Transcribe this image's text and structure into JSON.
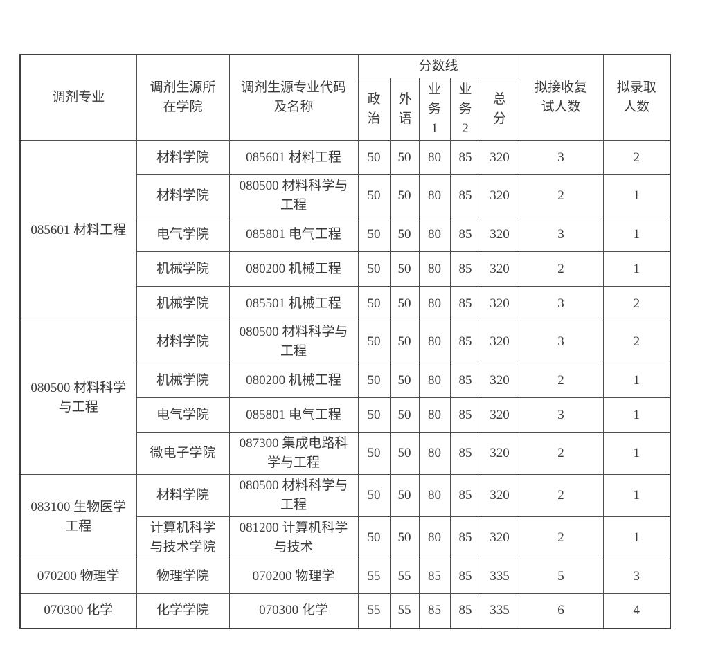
{
  "table": {
    "headers": {
      "col_major": "调剂专业",
      "col_college": "调剂生源所在学院",
      "col_code": "调剂生源专业代码及名称",
      "score_group": "分数线",
      "score_cols": [
        "政治",
        "外语",
        "业务1",
        "业务2",
        "总分"
      ],
      "col_retest": "拟接收复试人数",
      "col_admit": "拟录取人数"
    },
    "groups": [
      {
        "major": "085601 材料工程",
        "rows": [
          {
            "college": "材料学院",
            "code": "085601 材料工程",
            "scores": [
              50,
              50,
              80,
              85,
              320
            ],
            "retest": 3,
            "admit": 2
          },
          {
            "college": "材料学院",
            "code": "080500 材料科学与工程",
            "scores": [
              50,
              50,
              80,
              85,
              320
            ],
            "retest": 2,
            "admit": 1
          },
          {
            "college": "电气学院",
            "code": "085801 电气工程",
            "scores": [
              50,
              50,
              80,
              85,
              320
            ],
            "retest": 3,
            "admit": 1
          },
          {
            "college": "机械学院",
            "code": "080200 机械工程",
            "scores": [
              50,
              50,
              80,
              85,
              320
            ],
            "retest": 2,
            "admit": 1
          },
          {
            "college": "机械学院",
            "code": "085501 机械工程",
            "scores": [
              50,
              50,
              80,
              85,
              320
            ],
            "retest": 3,
            "admit": 2
          }
        ]
      },
      {
        "major": "080500 材料科学与工程",
        "rows": [
          {
            "college": "材料学院",
            "code": "080500 材料科学与工程",
            "scores": [
              50,
              50,
              80,
              85,
              320
            ],
            "retest": 3,
            "admit": 2
          },
          {
            "college": "机械学院",
            "code": "080200 机械工程",
            "scores": [
              50,
              50,
              80,
              85,
              320
            ],
            "retest": 2,
            "admit": 1
          },
          {
            "college": "电气学院",
            "code": "085801 电气工程",
            "scores": [
              50,
              50,
              80,
              85,
              320
            ],
            "retest": 3,
            "admit": 1
          },
          {
            "college": "微电子学院",
            "code": "087300 集成电路科学与工程",
            "scores": [
              50,
              50,
              80,
              85,
              320
            ],
            "retest": 2,
            "admit": 1
          }
        ]
      },
      {
        "major": "083100 生物医学工程",
        "rows": [
          {
            "college": "材料学院",
            "code": "080500 材料科学与工程",
            "scores": [
              50,
              50,
              80,
              85,
              320
            ],
            "retest": 2,
            "admit": 1
          },
          {
            "college": "计算机科学与技术学院",
            "code": "081200 计算机科学与技术",
            "scores": [
              50,
              50,
              80,
              85,
              320
            ],
            "retest": 2,
            "admit": 1
          }
        ]
      },
      {
        "major": "070200 物理学",
        "rows": [
          {
            "college": "物理学院",
            "code": "070200 物理学",
            "scores": [
              55,
              55,
              85,
              85,
              335
            ],
            "retest": 5,
            "admit": 3
          }
        ]
      },
      {
        "major": "070300 化学",
        "rows": [
          {
            "college": "化学学院",
            "code": "070300 化学",
            "scores": [
              55,
              55,
              85,
              85,
              335
            ],
            "retest": 6,
            "admit": 4
          }
        ]
      }
    ]
  }
}
